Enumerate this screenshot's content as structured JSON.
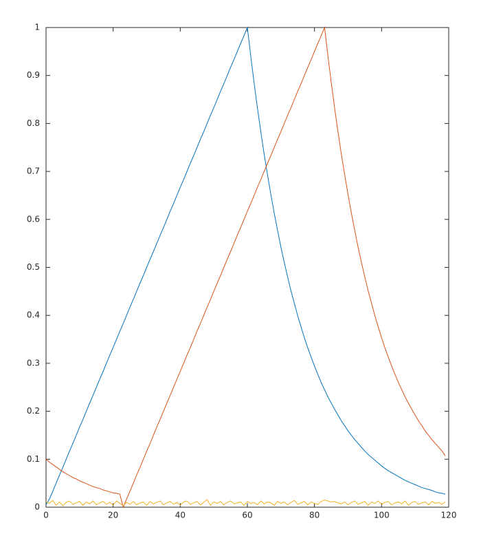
{
  "chart_data": {
    "type": "line",
    "x": [
      0,
      1,
      2,
      3,
      4,
      5,
      6,
      7,
      8,
      9,
      10,
      11,
      12,
      13,
      14,
      15,
      16,
      17,
      18,
      19,
      20,
      21,
      22,
      23,
      24,
      25,
      26,
      27,
      28,
      29,
      30,
      31,
      32,
      33,
      34,
      35,
      36,
      37,
      38,
      39,
      40,
      41,
      42,
      43,
      44,
      45,
      46,
      47,
      48,
      49,
      50,
      51,
      52,
      53,
      54,
      55,
      56,
      57,
      58,
      59,
      60,
      61,
      62,
      63,
      64,
      65,
      66,
      67,
      68,
      69,
      70,
      71,
      72,
      73,
      74,
      75,
      76,
      77,
      78,
      79,
      80,
      81,
      82,
      83,
      84,
      85,
      86,
      87,
      88,
      89,
      90,
      91,
      92,
      93,
      94,
      95,
      96,
      97,
      98,
      99,
      100,
      101,
      102,
      103,
      104,
      105,
      106,
      107,
      108,
      109,
      110,
      111,
      112,
      113,
      114,
      115,
      116,
      117,
      118,
      119
    ],
    "series": [
      {
        "color": "#0072BD",
        "values": [
          0.005,
          0.017,
          0.033,
          0.05,
          0.067,
          0.083,
          0.1,
          0.117,
          0.133,
          0.15,
          0.167,
          0.183,
          0.2,
          0.217,
          0.233,
          0.25,
          0.267,
          0.283,
          0.3,
          0.317,
          0.333,
          0.35,
          0.367,
          0.383,
          0.4,
          0.417,
          0.433,
          0.45,
          0.467,
          0.483,
          0.5,
          0.517,
          0.533,
          0.55,
          0.567,
          0.583,
          0.6,
          0.617,
          0.633,
          0.65,
          0.667,
          0.683,
          0.7,
          0.717,
          0.733,
          0.75,
          0.767,
          0.783,
          0.8,
          0.817,
          0.833,
          0.85,
          0.867,
          0.883,
          0.9,
          0.917,
          0.933,
          0.95,
          0.967,
          0.983,
          1,
          0.941,
          0.885,
          0.832,
          0.783,
          0.736,
          0.693,
          0.652,
          0.613,
          0.577,
          0.542,
          0.51,
          0.48,
          0.451,
          0.425,
          0.399,
          0.376,
          0.353,
          0.332,
          0.313,
          0.294,
          0.277,
          0.26,
          0.245,
          0.23,
          0.217,
          0.204,
          0.192,
          0.18,
          0.17,
          0.159,
          0.15,
          0.141,
          0.133,
          0.125,
          0.117,
          0.11,
          0.104,
          0.098,
          0.092,
          0.086,
          0.081,
          0.076,
          0.072,
          0.068,
          0.064,
          0.06,
          0.056,
          0.053,
          0.05,
          0.047,
          0.044,
          0.041,
          0.039,
          0.037,
          0.035,
          0.032,
          0.03,
          0.029,
          0.027
        ]
      },
      {
        "color": "#D95319",
        "values": [
          0.1,
          0.094,
          0.089,
          0.084,
          0.079,
          0.074,
          0.07,
          0.066,
          0.062,
          0.059,
          0.055,
          0.052,
          0.049,
          0.046,
          0.043,
          0.041,
          0.039,
          0.036,
          0.034,
          0.032,
          0.03,
          0.029,
          0.027,
          0,
          0.017,
          0.033,
          0.05,
          0.067,
          0.083,
          0.1,
          0.117,
          0.133,
          0.15,
          0.167,
          0.183,
          0.2,
          0.217,
          0.233,
          0.25,
          0.267,
          0.283,
          0.3,
          0.317,
          0.333,
          0.35,
          0.367,
          0.383,
          0.4,
          0.417,
          0.433,
          0.45,
          0.467,
          0.483,
          0.5,
          0.517,
          0.533,
          0.55,
          0.567,
          0.583,
          0.6,
          0.617,
          0.633,
          0.65,
          0.667,
          0.683,
          0.7,
          0.717,
          0.733,
          0.75,
          0.767,
          0.783,
          0.8,
          0.817,
          0.833,
          0.85,
          0.867,
          0.883,
          0.9,
          0.917,
          0.933,
          0.95,
          0.967,
          0.983,
          1,
          0.941,
          0.885,
          0.832,
          0.783,
          0.736,
          0.693,
          0.652,
          0.613,
          0.577,
          0.542,
          0.51,
          0.48,
          0.451,
          0.425,
          0.399,
          0.376,
          0.353,
          0.332,
          0.313,
          0.294,
          0.277,
          0.26,
          0.245,
          0.23,
          0.217,
          0.204,
          0.192,
          0.18,
          0.17,
          0.159,
          0.15,
          0.141,
          0.133,
          0.125,
          0.117,
          0.107
        ]
      },
      {
        "color": "#EDB120",
        "values": [
          0.012,
          0.008,
          0.014,
          0.004,
          0.011,
          0.003,
          0.01,
          0.013,
          0.006,
          0.009,
          0.012,
          0.004,
          0.011,
          0.007,
          0.013,
          0.005,
          0.009,
          0.012,
          0.006,
          0.01,
          0.004,
          0.013,
          0.008,
          0.003,
          0.01,
          0.006,
          0.012,
          0.005,
          0.009,
          0.011,
          0.004,
          0.012,
          0.007,
          0.01,
          0.013,
          0.005,
          0.009,
          0.012,
          0.006,
          0.01,
          0.004,
          0.011,
          0.013,
          0.006,
          0.009,
          0.012,
          0.005,
          0.01,
          0.016,
          0.004,
          0.011,
          0.008,
          0.012,
          0.005,
          0.01,
          0.013,
          0.007,
          0.009,
          0.011,
          0.004,
          0.012,
          0.008,
          0.01,
          0.005,
          0.013,
          0.007,
          0.011,
          0.009,
          0.004,
          0.012,
          0.008,
          0.011,
          0.005,
          0.01,
          0.014,
          0.006,
          0.009,
          0.012,
          0.005,
          0.011,
          0.008,
          0.006,
          0.012,
          0.015,
          0.013,
          0.011,
          0.012,
          0.009,
          0.007,
          0.011,
          0.005,
          0.01,
          0.013,
          0.006,
          0.009,
          0.012,
          0.004,
          0.011,
          0.008,
          0.013,
          0.006,
          0.01,
          0.012,
          0.005,
          0.009,
          0.011,
          0.007,
          0.013,
          0.004,
          0.01,
          0.012,
          0.006,
          0.009,
          0.011,
          0.005,
          0.012,
          0.008,
          0.01,
          0.006,
          0.011
        ]
      }
    ],
    "xlim": [
      0,
      120
    ],
    "xticks": [
      0,
      20,
      40,
      60,
      80,
      100,
      120
    ],
    "ylim": [
      0,
      1
    ],
    "yticks": [
      0,
      0.1,
      0.2,
      0.3,
      0.4,
      0.5,
      0.6,
      0.7,
      0.8,
      0.9,
      1
    ],
    "grid": false
  }
}
